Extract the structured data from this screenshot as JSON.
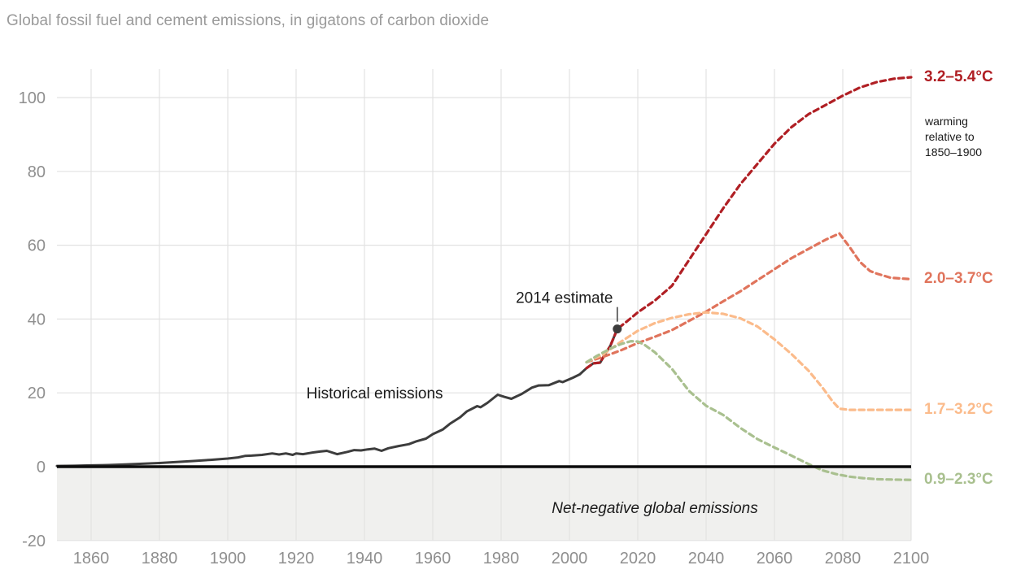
{
  "title": "Global fossil fuel and cement emissions, in gigatons of carbon dioxide",
  "colors": {
    "title_text": "#9a9a9a",
    "tick_text": "#8f8f8f",
    "gridline": "#e2e2e2",
    "shade": "#f0f0ee",
    "zero_line": "#0b0b0b",
    "historical": "#3d3d3d",
    "scenario_high": "#b01f24",
    "scenario_mid_high": "#e0745c",
    "scenario_mid_low": "#fbbb8b",
    "scenario_low": "#a9c08f",
    "annotation_text": "#1a1a1a"
  },
  "chart_data": {
    "type": "line",
    "title": "Global fossil fuel and cement emissions, in gigatons of carbon dioxide",
    "xlabel": "",
    "ylabel": "",
    "xlim": [
      1850,
      2100
    ],
    "ylim": [
      -20,
      108
    ],
    "grid": true,
    "x_ticks": [
      1860,
      1880,
      1900,
      1920,
      1940,
      1960,
      1980,
      2000,
      2020,
      2040,
      2060,
      2080,
      2100
    ],
    "y_ticks": [
      -20,
      0,
      20,
      40,
      60,
      80,
      100
    ],
    "legend_position": "right-edge-labels",
    "series": [
      {
        "key": "historical",
        "name": "Historical emissions",
        "style": "solid",
        "points": [
          [
            1850,
            0.2
          ],
          [
            1855,
            0.25
          ],
          [
            1860,
            0.35
          ],
          [
            1865,
            0.45
          ],
          [
            1870,
            0.6
          ],
          [
            1875,
            0.8
          ],
          [
            1880,
            1.0
          ],
          [
            1885,
            1.25
          ],
          [
            1890,
            1.55
          ],
          [
            1895,
            1.85
          ],
          [
            1900,
            2.2
          ],
          [
            1903,
            2.5
          ],
          [
            1905,
            2.9
          ],
          [
            1907,
            3.0
          ],
          [
            1910,
            3.2
          ],
          [
            1913,
            3.6
          ],
          [
            1915,
            3.3
          ],
          [
            1917,
            3.6
          ],
          [
            1919,
            3.2
          ],
          [
            1920,
            3.6
          ],
          [
            1922,
            3.4
          ],
          [
            1925,
            3.85
          ],
          [
            1927,
            4.1
          ],
          [
            1929,
            4.3
          ],
          [
            1932,
            3.4
          ],
          [
            1935,
            4.0
          ],
          [
            1937,
            4.5
          ],
          [
            1939,
            4.4
          ],
          [
            1941,
            4.7
          ],
          [
            1943,
            4.9
          ],
          [
            1945,
            4.3
          ],
          [
            1947,
            5.0
          ],
          [
            1950,
            5.6
          ],
          [
            1953,
            6.1
          ],
          [
            1955,
            6.8
          ],
          [
            1958,
            7.6
          ],
          [
            1960,
            8.8
          ],
          [
            1963,
            10.1
          ],
          [
            1965,
            11.6
          ],
          [
            1968,
            13.4
          ],
          [
            1970,
            15.0
          ],
          [
            1973,
            16.4
          ],
          [
            1974,
            16.1
          ],
          [
            1976,
            17.3
          ],
          [
            1979,
            19.5
          ],
          [
            1981,
            18.9
          ],
          [
            1983,
            18.4
          ],
          [
            1986,
            19.7
          ],
          [
            1989,
            21.4
          ],
          [
            1991,
            22.0
          ],
          [
            1994,
            22.1
          ],
          [
            1997,
            23.2
          ],
          [
            1998,
            22.9
          ],
          [
            2001,
            24.1
          ],
          [
            2003,
            25.0
          ],
          [
            2005,
            26.7
          ],
          [
            2007,
            28.0
          ],
          [
            2009,
            28.2
          ],
          [
            2010,
            29.8
          ],
          [
            2012,
            32.8
          ],
          [
            2014,
            37.3
          ]
        ]
      },
      {
        "key": "scenario_high",
        "name": "3.2–5.4°C",
        "style": "dashed",
        "points": [
          [
            2005,
            26.7
          ],
          [
            2007,
            28.0
          ],
          [
            2009,
            28.2
          ],
          [
            2010,
            29.8
          ],
          [
            2012,
            32.8
          ],
          [
            2014,
            37.3
          ],
          [
            2017,
            39.5
          ],
          [
            2020,
            41.8
          ],
          [
            2025,
            45
          ],
          [
            2030,
            49
          ],
          [
            2035,
            56
          ],
          [
            2040,
            63
          ],
          [
            2045,
            70
          ],
          [
            2050,
            76.5
          ],
          [
            2055,
            82
          ],
          [
            2060,
            87.5
          ],
          [
            2065,
            92
          ],
          [
            2070,
            95.5
          ],
          [
            2075,
            98
          ],
          [
            2080,
            100.5
          ],
          [
            2085,
            102.7
          ],
          [
            2090,
            104.2
          ],
          [
            2095,
            105.1
          ],
          [
            2100,
            105.5
          ]
        ]
      },
      {
        "key": "scenario_mid_high",
        "name": "2.0–3.7°C",
        "style": "dashed",
        "points": [
          [
            2005,
            28.3
          ],
          [
            2010,
            29.8
          ],
          [
            2015,
            31.5
          ],
          [
            2020,
            33.5
          ],
          [
            2025,
            35.2
          ],
          [
            2030,
            37
          ],
          [
            2035,
            39.5
          ],
          [
            2040,
            42
          ],
          [
            2045,
            44.8
          ],
          [
            2050,
            47.5
          ],
          [
            2055,
            50.5
          ],
          [
            2060,
            53.5
          ],
          [
            2065,
            56.5
          ],
          [
            2070,
            59
          ],
          [
            2075,
            61.5
          ],
          [
            2079,
            63.2
          ],
          [
            2082,
            59.5
          ],
          [
            2085,
            55.5
          ],
          [
            2088,
            53
          ],
          [
            2090,
            52.3
          ],
          [
            2094,
            51.2
          ],
          [
            2100,
            50.8
          ]
        ]
      },
      {
        "key": "scenario_mid_low",
        "name": "1.7–3.2°C",
        "style": "dashed",
        "points": [
          [
            2005,
            28.3
          ],
          [
            2010,
            30.5
          ],
          [
            2015,
            33.8
          ],
          [
            2020,
            36.8
          ],
          [
            2025,
            38.9
          ],
          [
            2030,
            40.3
          ],
          [
            2035,
            41.3
          ],
          [
            2040,
            41.8
          ],
          [
            2045,
            41.4
          ],
          [
            2050,
            40.2
          ],
          [
            2055,
            38
          ],
          [
            2060,
            34.5
          ],
          [
            2065,
            30.5
          ],
          [
            2070,
            26
          ],
          [
            2074,
            21.5
          ],
          [
            2077,
            17.7
          ],
          [
            2079,
            15.7
          ],
          [
            2082,
            15.4
          ],
          [
            2090,
            15.4
          ],
          [
            2100,
            15.4
          ]
        ]
      },
      {
        "key": "scenario_low",
        "name": "0.9–2.3°C",
        "style": "dashed",
        "points": [
          [
            2005,
            28.3
          ],
          [
            2008,
            30.0
          ],
          [
            2012,
            32.0
          ],
          [
            2015,
            33.2
          ],
          [
            2018,
            34.0
          ],
          [
            2020,
            33.9
          ],
          [
            2022,
            33.0
          ],
          [
            2025,
            31.0
          ],
          [
            2030,
            26.5
          ],
          [
            2035,
            20.5
          ],
          [
            2040,
            16.5
          ],
          [
            2045,
            14.0
          ],
          [
            2050,
            10.5
          ],
          [
            2055,
            7.5
          ],
          [
            2060,
            5.2
          ],
          [
            2065,
            3.0
          ],
          [
            2070,
            0.7
          ],
          [
            2074,
            -1.0
          ],
          [
            2078,
            -2.0
          ],
          [
            2082,
            -2.7
          ],
          [
            2086,
            -3.1
          ],
          [
            2090,
            -3.4
          ],
          [
            2095,
            -3.5
          ],
          [
            2100,
            -3.6
          ]
        ]
      }
    ],
    "right_labels": [
      {
        "key": "scenario_high",
        "text": "3.2–5.4°C",
        "value": 105.5
      },
      {
        "key": "scenario_mid_high",
        "text": "2.0–3.7°C",
        "value": 50.8
      },
      {
        "key": "scenario_mid_low",
        "text": "1.7–3.2°C",
        "value": 15.4
      },
      {
        "key": "scenario_low",
        "text": "0.9–2.3°C",
        "value": -3.6
      }
    ],
    "annotations": {
      "estimate_label": "2014 estimate",
      "estimate_point": [
        2014,
        37.3
      ],
      "historical_label": "Historical emissions",
      "historical_label_pos": [
        1943,
        18.5
      ],
      "net_negative_label": "Net-negative global emissions",
      "net_negative_pos": [
        2025,
        -12.5
      ],
      "warming_note_lines": [
        "warming",
        "relative to",
        "1850–1900"
      ]
    }
  }
}
